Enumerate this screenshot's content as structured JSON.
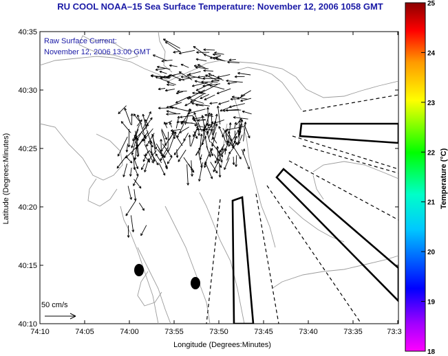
{
  "title": "RU COOL  NOAA–15  Sea Surface Temperature:  November 12, 2006 1058 GMT",
  "current_label_line1": "Raw Surface Current:",
  "current_label_line2": "November 12, 2006 13:00 GMT",
  "scale_label": "50 cm/s",
  "axes": {
    "xlabel": "Longitude (Degrees:Minutes)",
    "ylabel": "Latitude (Degrees:Minutes)",
    "x_ticks": [
      "74:10",
      "74:05",
      "74:00",
      "73:55",
      "73:50",
      "73:45",
      "73:40",
      "73:35",
      "73:3"
    ],
    "y_ticks": [
      "40:35",
      "40:30",
      "40:25",
      "40:20",
      "40:15",
      "40:10"
    ]
  },
  "colorbar": {
    "label": "Temperature (°C)",
    "ticks": [
      "25",
      "24",
      "23",
      "22",
      "21",
      "20",
      "19",
      "18"
    ],
    "range": [
      18,
      25
    ],
    "colors": [
      "#ff00ff",
      "#0000ff",
      "#00ffff",
      "#00ff00",
      "#ffff00",
      "#ff8800",
      "#ff0000",
      "#8b0000"
    ]
  },
  "colors": {
    "title_text": "#1a1aa6",
    "contour": "#9a9a9a",
    "arrows": "#000000",
    "ocean_background": "#ffffff"
  }
}
